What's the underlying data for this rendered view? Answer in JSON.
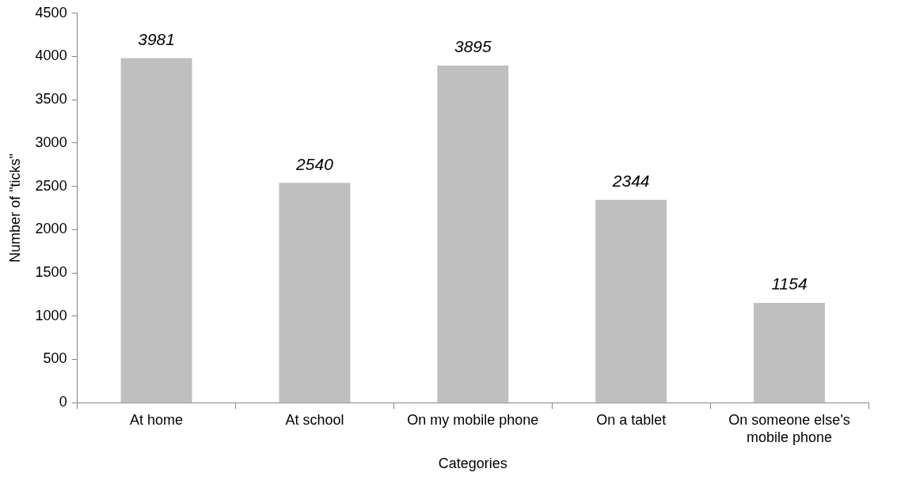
{
  "chart_data": {
    "type": "bar",
    "xlabel": "Categories",
    "ylabel": "Number of \"ticks\"",
    "categories": [
      "At home",
      "At school",
      "On my mobile phone",
      "On a tablet",
      "On someone else's mobile phone"
    ],
    "values": [
      3981,
      2540,
      3895,
      2344,
      1154
    ],
    "color": "#bfbfbf",
    "ylim": [
      0,
      4500
    ],
    "yticks": [
      0,
      500,
      1000,
      1500,
      2000,
      2500,
      3000,
      3500,
      4000,
      4500
    ],
    "grid": false,
    "legend": false,
    "data_labels": true
  }
}
